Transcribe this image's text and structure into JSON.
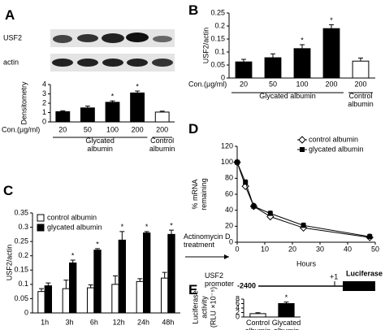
{
  "chart_data": [
    {
      "type": "bar",
      "panel": "A",
      "blot_labels": [
        "USF2",
        "actin"
      ],
      "ylabel": "Densitometry",
      "xlabel": "Con.(µg/ml)",
      "categories": [
        "20",
        "50",
        "100",
        "200",
        "200"
      ],
      "group_labels": [
        "Glycated albumin",
        "Control albumin"
      ],
      "series": [
        {
          "colors": [
            "#000000",
            "#000000",
            "#000000",
            "#000000",
            "#ffffff"
          ],
          "values": [
            1.1,
            1.5,
            2.1,
            3.1,
            1.05
          ],
          "errors": [
            0.1,
            0.2,
            0.15,
            0.2,
            0.1
          ],
          "significance": [
            null,
            null,
            "*",
            "*",
            null
          ]
        }
      ],
      "ylim": [
        0,
        4
      ],
      "yticks": [
        0,
        1,
        2,
        3,
        4
      ]
    },
    {
      "type": "bar",
      "panel": "B",
      "ylabel": "USF2/actin",
      "xlabel": "Con.(µg/ml)",
      "categories": [
        "20",
        "50",
        "100",
        "200",
        "200"
      ],
      "group_labels": [
        "Glycated albumin",
        "Control albumin"
      ],
      "series": [
        {
          "colors": [
            "#000000",
            "#000000",
            "#000000",
            "#000000",
            "#ffffff"
          ],
          "values": [
            0.062,
            0.078,
            0.113,
            0.19,
            0.065
          ],
          "errors": [
            0.01,
            0.015,
            0.015,
            0.015,
            0.012
          ],
          "significance": [
            null,
            null,
            "*",
            "*",
            null
          ]
        }
      ],
      "ylim": [
        0,
        0.25
      ],
      "yticks": [
        0,
        0.05,
        0.1,
        0.15,
        0.2,
        0.25
      ]
    },
    {
      "type": "bar",
      "panel": "C",
      "ylabel": "USF2/actin",
      "categories": [
        "1h",
        "3h",
        "6h",
        "12h",
        "24h",
        "48h"
      ],
      "series": [
        {
          "name": "control albumin",
          "color": "#ffffff",
          "values": [
            0.075,
            0.085,
            0.088,
            0.1,
            0.11,
            0.122
          ],
          "errors": [
            0.01,
            0.03,
            0.01,
            0.03,
            0.01,
            0.02
          ]
        },
        {
          "name": "glycated albumin",
          "color": "#000000",
          "values": [
            0.095,
            0.175,
            0.22,
            0.255,
            0.28,
            0.275
          ],
          "errors": [
            0.01,
            0.01,
            0.005,
            0.03,
            0.005,
            0.015
          ],
          "significance": [
            null,
            "*",
            "*",
            "*",
            "*",
            "*"
          ]
        }
      ],
      "ylim": [
        0,
        0.35
      ],
      "yticks": [
        0,
        0.05,
        0.1,
        0.15,
        0.2,
        0.25,
        0.3,
        0.35
      ]
    },
    {
      "type": "line",
      "panel": "D",
      "ylabel": [
        "% mRNA",
        "remaining"
      ],
      "xlabel": "Hours",
      "annotation": "Actinomycin D treatment",
      "x": [
        0,
        3,
        6,
        12,
        24,
        48
      ],
      "series": [
        {
          "name": "control albumin",
          "color": "#000000",
          "marker": "diamond-open",
          "values": [
            100,
            70,
            45,
            32,
            18,
            6
          ],
          "errors": [
            0,
            3,
            3,
            3,
            3,
            3
          ]
        },
        {
          "name": "glycated albumin",
          "color": "#000000",
          "marker": "square",
          "values": [
            100,
            75,
            45,
            36,
            21,
            7
          ],
          "errors": [
            0,
            3,
            3,
            3,
            3,
            3
          ]
        }
      ],
      "xlim": [
        0,
        50
      ],
      "xticks": [
        0,
        10,
        20,
        30,
        40,
        50
      ],
      "ylim": [
        0,
        120
      ],
      "yticks": [
        0,
        20,
        40,
        60,
        80,
        100,
        120
      ]
    },
    {
      "type": "bar",
      "panel": "E",
      "diagram": {
        "promoter_label": "USF2 promoter",
        "start": "-2400",
        "tss": "+1",
        "reporter": "Luciferase"
      },
      "ylabel": [
        "Luciferase",
        "activity",
        "(RLU ×10⁻⁵)"
      ],
      "categories": [
        "Control albumin",
        "Glycated albumin"
      ],
      "series": [
        {
          "colors": [
            "#ffffff",
            "#000000"
          ],
          "values": [
            1.5,
            6
          ],
          "errors": [
            0.4,
            0.7
          ],
          "significance": [
            null,
            "*"
          ]
        }
      ],
      "ylim": [
        0,
        8
      ],
      "yticks": [
        0,
        2,
        4,
        6,
        8
      ]
    }
  ]
}
